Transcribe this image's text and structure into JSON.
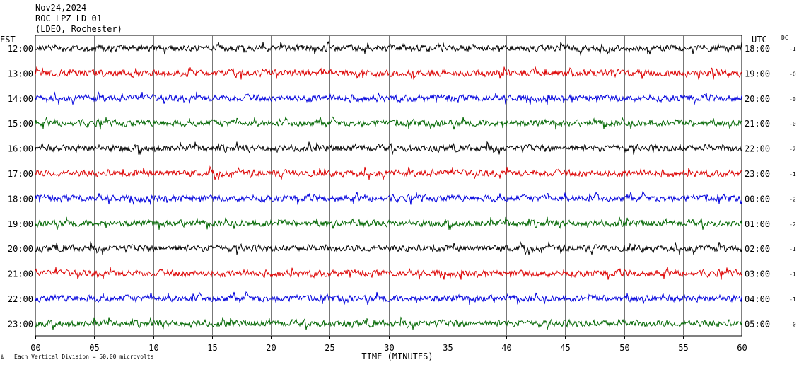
{
  "header": {
    "date": "Nov24,2024",
    "station": "ROC LPZ LD 01",
    "network": "(LDEO, Rochester)"
  },
  "left_zone": "EST",
  "right_zone": "UTC",
  "dc_label": "DC",
  "footer": {
    "division_note": "Each Vertical Division =   50.00 microvolts"
  },
  "chart_data": {
    "type": "line",
    "title": "",
    "xlabel": "TIME (MINUTES)",
    "xlim": [
      0,
      60
    ],
    "x_ticks": [
      "00",
      "05",
      "10",
      "15",
      "20",
      "25",
      "30",
      "35",
      "40",
      "45",
      "50",
      "55",
      "60"
    ],
    "trace_colors": [
      "#000000",
      "#dd0000",
      "#0000dd",
      "#006600"
    ],
    "rows": [
      {
        "est": "12:00",
        "utc": "18:00",
        "dc": "-1"
      },
      {
        "est": "13:00",
        "utc": "19:00",
        "dc": "-0"
      },
      {
        "est": "14:00",
        "utc": "20:00",
        "dc": "-0"
      },
      {
        "est": "15:00",
        "utc": "21:00",
        "dc": "-0"
      },
      {
        "est": "16:00",
        "utc": "22:00",
        "dc": "-2"
      },
      {
        "est": "17:00",
        "utc": "23:00",
        "dc": "-1"
      },
      {
        "est": "18:00",
        "utc": "00:00",
        "dc": "-2"
      },
      {
        "est": "19:00",
        "utc": "01:00",
        "dc": "-2"
      },
      {
        "est": "20:00",
        "utc": "02:00",
        "dc": "-1"
      },
      {
        "est": "21:00",
        "utc": "03:00",
        "dc": "-1"
      },
      {
        "est": "22:00",
        "utc": "04:00",
        "dc": "-1"
      },
      {
        "est": "23:00",
        "utc": "05:00",
        "dc": "-0"
      }
    ]
  }
}
